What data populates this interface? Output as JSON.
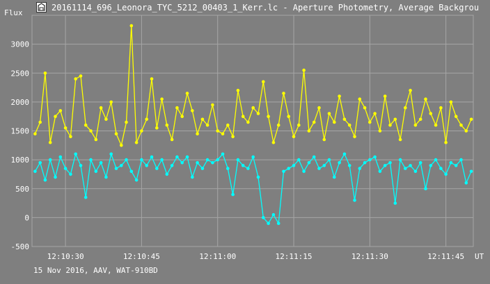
{
  "window": {
    "title": "20161114_696_Leonora_TYC_5212_00403_1_Kerr.lc - Aperture Photometry, Average Backgrou",
    "icon": "observatory-app-icon"
  },
  "footer": {
    "text": "15 Nov 2016, AAV, WAT-910BD"
  },
  "colors": {
    "background": "#7f7f7f",
    "grid": "#a6a6a6",
    "text": "#ffffff",
    "series_yellow": "#ffff00",
    "series_cyan": "#00ffff"
  },
  "chart_data": {
    "type": "line",
    "title": "",
    "ylabel": "Flux",
    "xlabel": "UT",
    "ylim": [
      -500,
      3500
    ],
    "xlim": [
      "12:10:23.4",
      "12:11:50.4"
    ],
    "y_ticks": [
      "-500",
      "0",
      "500",
      "1000",
      "1500",
      "2000",
      "2500",
      "3000"
    ],
    "x_ticks": [
      "12:10:30",
      "12:10:45",
      "12:11:00",
      "12:11:15",
      "12:11:30",
      "12:11:45"
    ],
    "grid": true,
    "legend": "none",
    "marker": "dot",
    "series": [
      {
        "color": "#ffff00",
        "x": [
          "12:10:24",
          "12:10:25",
          "12:10:26",
          "12:10:27",
          "12:10:28",
          "12:10:29",
          "12:10:30",
          "12:10:31",
          "12:10:32",
          "12:10:33",
          "12:10:34",
          "12:10:35",
          "12:10:36",
          "12:10:37",
          "12:10:38",
          "12:10:39",
          "12:10:40",
          "12:10:41",
          "12:10:42",
          "12:10:43",
          "12:10:44",
          "12:10:45",
          "12:10:46",
          "12:10:47",
          "12:10:48",
          "12:10:49",
          "12:10:50",
          "12:10:51",
          "12:10:52",
          "12:10:53",
          "12:10:54",
          "12:10:55",
          "12:10:56",
          "12:10:57",
          "12:10:58",
          "12:10:59",
          "12:11:00",
          "12:11:01",
          "12:11:02",
          "12:11:03",
          "12:11:04",
          "12:11:05",
          "12:11:06",
          "12:11:07",
          "12:11:08",
          "12:11:09",
          "12:11:10",
          "12:11:11",
          "12:11:12",
          "12:11:13",
          "12:11:14",
          "12:11:15",
          "12:11:16",
          "12:11:17",
          "12:11:18",
          "12:11:19",
          "12:11:20",
          "12:11:21",
          "12:11:22",
          "12:11:23",
          "12:11:24",
          "12:11:25",
          "12:11:26",
          "12:11:27",
          "12:11:28",
          "12:11:29",
          "12:11:30",
          "12:11:31",
          "12:11:32",
          "12:11:33",
          "12:11:34",
          "12:11:35",
          "12:11:36",
          "12:11:37",
          "12:11:38",
          "12:11:39",
          "12:11:40",
          "12:11:41",
          "12:11:42",
          "12:11:43",
          "12:11:44",
          "12:11:45",
          "12:11:46",
          "12:11:47",
          "12:11:48",
          "12:11:49",
          "12:11:50"
        ],
        "values": [
          1450,
          1650,
          2500,
          1300,
          1750,
          1850,
          1550,
          1400,
          2400,
          2450,
          1600,
          1500,
          1350,
          1900,
          1700,
          2000,
          1450,
          1250,
          1650,
          3320,
          1300,
          1500,
          1700,
          2400,
          1550,
          2050,
          1600,
          1350,
          1900,
          1750,
          2150,
          1850,
          1450,
          1700,
          1600,
          1950,
          1500,
          1450,
          1600,
          1400,
          2200,
          1750,
          1650,
          1900,
          1800,
          2350,
          1750,
          1300,
          1600,
          2150,
          1750,
          1400,
          1600,
          2550,
          1500,
          1650,
          1900,
          1350,
          1800,
          1650,
          2100,
          1700,
          1600,
          1400,
          2050,
          1900,
          1650,
          1800,
          1500,
          2100,
          1600,
          1700,
          1350,
          1900,
          2200,
          1600,
          1700,
          2050,
          1800,
          1600,
          1900,
          1300,
          2000,
          1750,
          1600,
          1500,
          1700
        ]
      },
      {
        "color": "#00ffff",
        "x": [
          "12:10:24",
          "12:10:25",
          "12:10:26",
          "12:10:27",
          "12:10:28",
          "12:10:29",
          "12:10:30",
          "12:10:31",
          "12:10:32",
          "12:10:33",
          "12:10:34",
          "12:10:35",
          "12:10:36",
          "12:10:37",
          "12:10:38",
          "12:10:39",
          "12:10:40",
          "12:10:41",
          "12:10:42",
          "12:10:43",
          "12:10:44",
          "12:10:45",
          "12:10:46",
          "12:10:47",
          "12:10:48",
          "12:10:49",
          "12:10:50",
          "12:10:51",
          "12:10:52",
          "12:10:53",
          "12:10:54",
          "12:10:55",
          "12:10:56",
          "12:10:57",
          "12:10:58",
          "12:10:59",
          "12:11:00",
          "12:11:01",
          "12:11:02",
          "12:11:03",
          "12:11:04",
          "12:11:05",
          "12:11:06",
          "12:11:07",
          "12:11:08",
          "12:11:09",
          "12:11:10",
          "12:11:11",
          "12:11:12",
          "12:11:13",
          "12:11:14",
          "12:11:15",
          "12:11:16",
          "12:11:17",
          "12:11:18",
          "12:11:19",
          "12:11:20",
          "12:11:21",
          "12:11:22",
          "12:11:23",
          "12:11:24",
          "12:11:25",
          "12:11:26",
          "12:11:27",
          "12:11:28",
          "12:11:29",
          "12:11:30",
          "12:11:31",
          "12:11:32",
          "12:11:33",
          "12:11:34",
          "12:11:35",
          "12:11:36",
          "12:11:37",
          "12:11:38",
          "12:11:39",
          "12:11:40",
          "12:11:41",
          "12:11:42",
          "12:11:43",
          "12:11:44",
          "12:11:45",
          "12:11:46",
          "12:11:47",
          "12:11:48",
          "12:11:49",
          "12:11:50"
        ],
        "values": [
          800,
          950,
          650,
          1000,
          700,
          1050,
          850,
          750,
          1100,
          900,
          350,
          1000,
          800,
          950,
          700,
          1100,
          850,
          900,
          1000,
          800,
          650,
          1000,
          900,
          1050,
          850,
          1000,
          750,
          900,
          1050,
          950,
          1050,
          700,
          950,
          850,
          1000,
          950,
          1000,
          1100,
          850,
          400,
          1000,
          900,
          850,
          1050,
          700,
          0,
          -100,
          50,
          -100,
          800,
          850,
          900,
          1000,
          800,
          950,
          1050,
          850,
          900,
          1000,
          700,
          950,
          1100,
          900,
          300,
          850,
          950,
          1000,
          1050,
          800,
          900,
          950,
          250,
          1000,
          850,
          900,
          800,
          950,
          500,
          900,
          1000,
          850,
          750,
          950,
          900,
          1000,
          600,
          800
        ]
      }
    ]
  }
}
